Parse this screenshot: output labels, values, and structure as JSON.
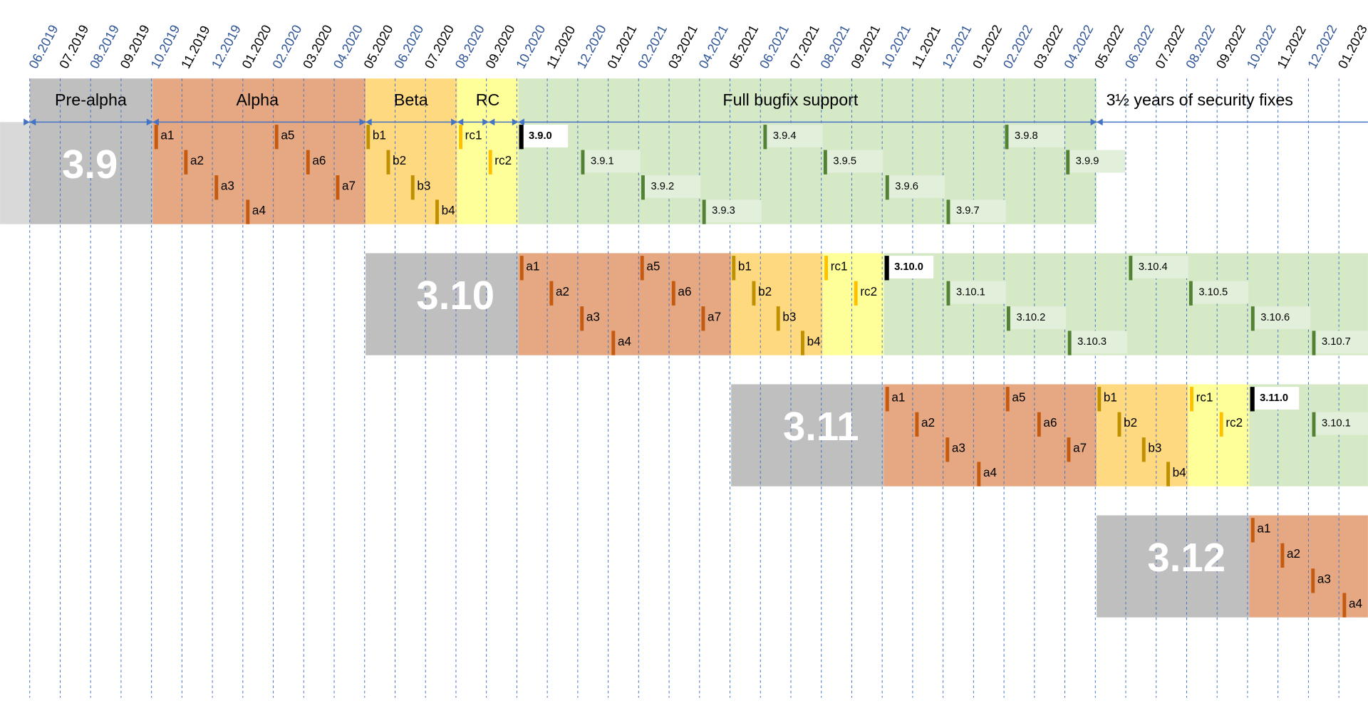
{
  "months": [
    "06.2019",
    "07.2019",
    "08.2019",
    "09.2019",
    "10.2019",
    "11.2019",
    "12.2019",
    "01.2020",
    "02.2020",
    "03.2020",
    "04.2020",
    "05.2020",
    "06.2020",
    "07.2020",
    "08.2020",
    "09.2020",
    "10.2020",
    "11.2020",
    "12.2020",
    "01.2021",
    "02.2021",
    "03.2021",
    "04.2021",
    "05.2021",
    "06.2021",
    "07.2021",
    "08.2021",
    "09.2021",
    "10.2021",
    "11.2021",
    "12.2021",
    "01.2022",
    "02.2022",
    "03.2022",
    "04.2022",
    "05.2022",
    "06.2022",
    "07.2022",
    "08.2022",
    "09.2022",
    "10.2022",
    "11.2022",
    "12.2022",
    "01.2023"
  ],
  "phases": [
    "Pre-alpha",
    "Alpha",
    "Beta",
    "RC",
    "Full bugfix support",
    "3½ years of security fixes"
  ],
  "releases": [
    {
      "version": "3.9",
      "markers": [
        "a1",
        "a2",
        "a3",
        "a4",
        "a5",
        "a6",
        "a7",
        "b1",
        "b2",
        "b3",
        "b4",
        "rc1",
        "rc2",
        "3.9.0",
        "3.9.1",
        "3.9.2",
        "3.9.3",
        "3.9.4",
        "3.9.5",
        "3.9.6",
        "3.9.7",
        "3.9.8",
        "3.9.9"
      ]
    },
    {
      "version": "3.10",
      "markers": [
        "a1",
        "a2",
        "a3",
        "a4",
        "a5",
        "a6",
        "a7",
        "b1",
        "b2",
        "b3",
        "b4",
        "rc1",
        "rc2",
        "3.10.0",
        "3.10.1",
        "3.10.2",
        "3.10.3",
        "3.10.4",
        "3.10.5",
        "3.10.6",
        "3.10.7"
      ]
    },
    {
      "version": "3.11",
      "markers": [
        "a1",
        "a2",
        "a3",
        "a4",
        "a5",
        "a6",
        "a7",
        "b1",
        "b2",
        "b3",
        "b4",
        "rc1",
        "rc2",
        "3.11.0",
        "3.10.1"
      ]
    },
    {
      "version": "3.12",
      "markers": [
        "a1",
        "a2",
        "a3",
        "a4"
      ]
    }
  ]
}
